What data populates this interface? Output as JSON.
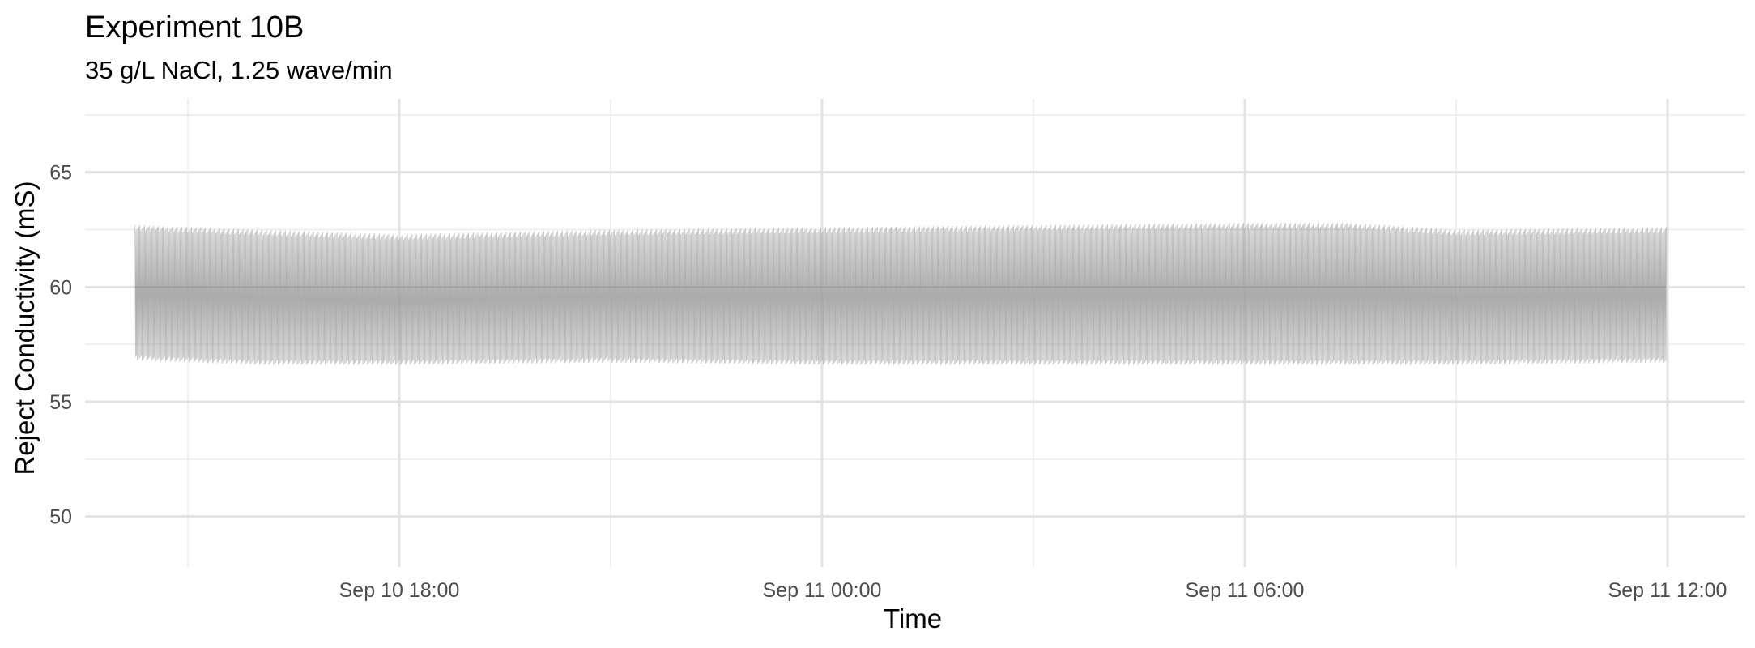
{
  "chart_data": {
    "type": "line",
    "title": "Experiment 10B",
    "subtitle": "35 g/L NaCl, 1.25 wave/min",
    "xlabel": "Time",
    "ylabel": "Reject Conductivity (mS)",
    "x_ticks": [
      "2023-09-10T18:00",
      "2023-09-11T00:00",
      "2023-09-11T06:00",
      "2023-09-11T12:00"
    ],
    "x_tick_labels": [
      "Sep 10 18:00",
      "Sep 11 00:00",
      "Sep 11 06:00",
      "Sep 11 12:00"
    ],
    "x_range": [
      "2023-09-10T13:00",
      "2023-09-11T13:00"
    ],
    "y_ticks": [
      50,
      55,
      60,
      65
    ],
    "ylim": [
      47.8,
      68.2
    ],
    "grid": true,
    "legend": "none",
    "series": [
      {
        "color": "#9e9e9e",
        "period_minutes": 0.8,
        "x_start": "2023-09-10T14:15",
        "x_end": "2023-09-11T11:59",
        "upper_envelope": [
          [
            "2023-09-10T14:15",
            62.7
          ],
          [
            "2023-09-10T16:00",
            62.5
          ],
          [
            "2023-09-10T18:00",
            62.3
          ],
          [
            "2023-09-10T21:00",
            62.5
          ],
          [
            "2023-09-11T00:00",
            62.6
          ],
          [
            "2023-09-11T03:00",
            62.7
          ],
          [
            "2023-09-11T06:00",
            62.8
          ],
          [
            "2023-09-11T07:30",
            62.8
          ],
          [
            "2023-09-11T09:00",
            62.5
          ],
          [
            "2023-09-11T11:59",
            62.6
          ]
        ],
        "lower_envelope": [
          [
            "2023-09-10T14:15",
            56.8
          ],
          [
            "2023-09-10T16:00",
            56.6
          ],
          [
            "2023-09-10T18:00",
            56.6
          ],
          [
            "2023-09-10T21:00",
            56.7
          ],
          [
            "2023-09-11T00:00",
            56.6
          ],
          [
            "2023-09-11T03:00",
            56.6
          ],
          [
            "2023-09-11T06:00",
            56.6
          ],
          [
            "2023-09-11T09:00",
            56.6
          ],
          [
            "2023-09-11T11:59",
            56.7
          ]
        ]
      }
    ]
  }
}
